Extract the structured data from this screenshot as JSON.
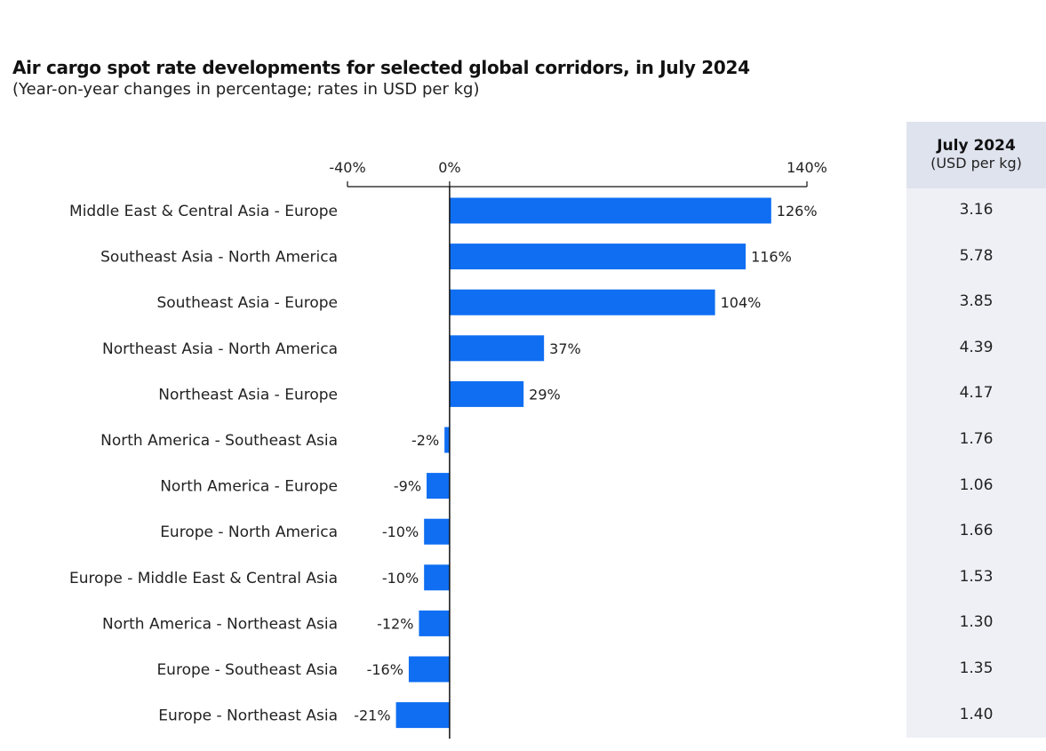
{
  "title": "Air cargo spot rate developments for selected global corridors, in July 2024",
  "subtitle": "(Year-on-year changes in percentage; rates in USD per kg)",
  "colors": {
    "bar": "#0f6ef2",
    "panel": "#eef0f6",
    "panel_header": "#dfe3ee"
  },
  "side_panel": {
    "title": "July 2024",
    "unit": "(USD per kg)",
    "values": [
      "3.16",
      "5.78",
      "3.85",
      "4.39",
      "4.17",
      "1.76",
      "1.06",
      "1.66",
      "1.53",
      "1.30",
      "1.35",
      "1.40"
    ]
  },
  "chart_data": {
    "type": "bar",
    "orientation": "horizontal",
    "categories": [
      "Middle East & Central Asia - Europe",
      "Southeast Asia - North America",
      "Southeast Asia - Europe",
      "Northeast Asia - North America",
      "Northeast Asia - Europe",
      "North America - Southeast Asia",
      "North America - Europe",
      "Europe - North America",
      "Europe - Middle East & Central Asia",
      "North America - Northeast Asia",
      "Europe - Southeast Asia",
      "Europe - Northeast Asia"
    ],
    "values": [
      126,
      116,
      104,
      37,
      29,
      -2,
      -9,
      -10,
      -10,
      -12,
      -16,
      -21
    ],
    "data_labels": [
      "126%",
      "116%",
      "104%",
      "37%",
      "29%",
      "-2%",
      "-9%",
      "-10%",
      "-10%",
      "-12%",
      "-16%",
      "-21%"
    ],
    "xlim": [
      -40,
      140
    ],
    "x_ticks": [
      {
        "value": -40,
        "label": "-40%"
      },
      {
        "value": 0,
        "label": "0%"
      },
      {
        "value": 140,
        "label": "140%"
      }
    ],
    "axis_position": "top",
    "grid": false,
    "legend": "none"
  }
}
